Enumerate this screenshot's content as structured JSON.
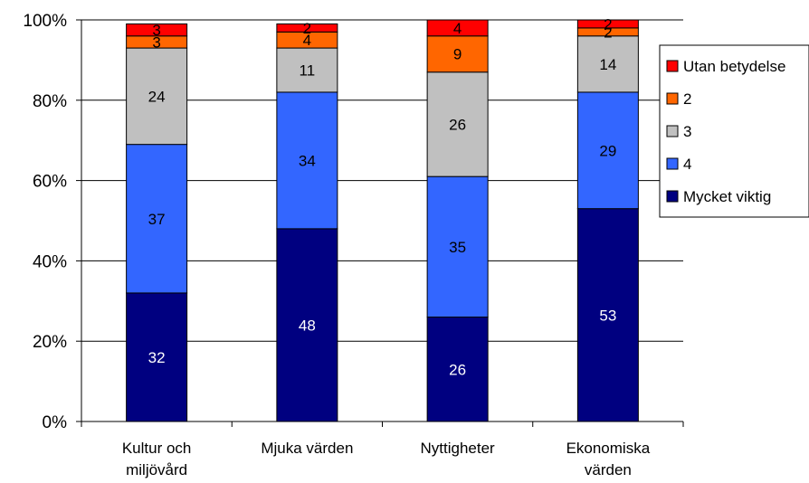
{
  "chart_data": {
    "type": "bar",
    "stacked": true,
    "percent": true,
    "title": "",
    "xlabel": "",
    "ylabel": "",
    "ylim": [
      0,
      100
    ],
    "yticks": [
      "0%",
      "20%",
      "40%",
      "60%",
      "80%",
      "100%"
    ],
    "categories": [
      [
        "Kultur och",
        "miljövård"
      ],
      [
        "Mjuka värden"
      ],
      [
        "Nyttigheter"
      ],
      [
        "Ekonomiska",
        "värden"
      ]
    ],
    "series": [
      {
        "name": "Mycket viktig",
        "color": "#000080",
        "label_color": "#ffffff",
        "values": [
          32,
          48,
          26,
          53
        ]
      },
      {
        "name": "4",
        "color": "#3366ff",
        "label_color": "#000000",
        "values": [
          37,
          34,
          35,
          29
        ]
      },
      {
        "name": "3",
        "color": "#c0c0c0",
        "label_color": "#000000",
        "values": [
          24,
          11,
          26,
          14
        ]
      },
      {
        "name": "2",
        "color": "#ff6600",
        "label_color": "#000000",
        "values": [
          3,
          4,
          9,
          2
        ]
      },
      {
        "name": "Utan betydelse",
        "color": "#ff0000",
        "label_color": "#000000",
        "values": [
          3,
          2,
          4,
          2
        ]
      }
    ],
    "legend_order": [
      "Utan betydelse",
      "2",
      "3",
      "4",
      "Mycket viktig"
    ],
    "legend_position": "right",
    "grid": true
  }
}
